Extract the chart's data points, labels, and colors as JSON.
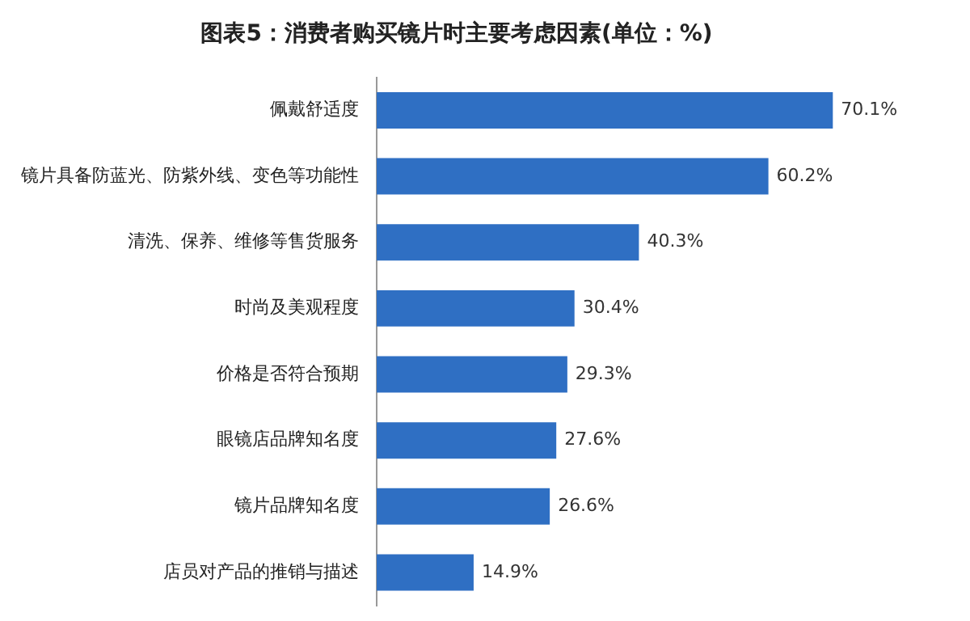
{
  "chart_data": {
    "type": "bar",
    "orientation": "horizontal",
    "title": "图表5：消费者购买镜片时主要考虑因素(单位：%)",
    "categories": [
      "佩戴舒适度",
      "镜片具备防蓝光、防紫外线、变色等功能性",
      "清洗、保养、维修等售货服务",
      "时尚及美观程度",
      "价格是否符合预期",
      "眼镜店品牌知名度",
      "镜片品牌知名度",
      "店员对产品的推销与描述"
    ],
    "values": [
      70.1,
      60.2,
      40.3,
      30.4,
      29.3,
      27.6,
      26.6,
      14.9
    ],
    "value_labels": [
      "70.1%",
      "60.2%",
      "40.3%",
      "30.4%",
      "29.3%",
      "27.6%",
      "26.6%",
      "14.9%"
    ],
    "color": "#2f6fc3"
  }
}
